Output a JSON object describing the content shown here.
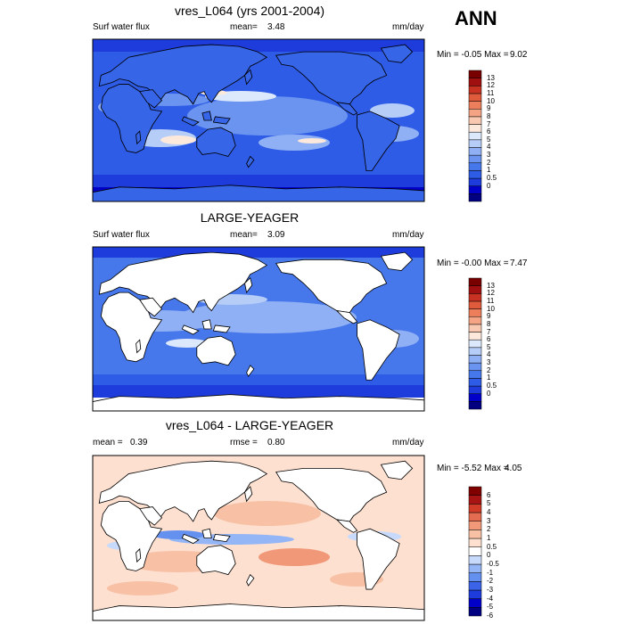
{
  "season": "ANN",
  "palette": {
    "abs": [
      "#000080",
      "#0000c8",
      "#1e3cdc",
      "#2e5ce6",
      "#4678ec",
      "#6a94f0",
      "#8fb0f4",
      "#b6cdf8",
      "#dce8fc",
      "#fde8dc",
      "#f8c8b0",
      "#f4a484",
      "#ec7e5c",
      "#e05a3c",
      "#c83222",
      "#a01010",
      "#780000"
    ],
    "diff": [
      "#000080",
      "#0000c8",
      "#1e3cdc",
      "#3c64e8",
      "#6490f0",
      "#94b6f6",
      "#c8dafc",
      "#ffffff",
      "#fde0d0",
      "#f8c0a4",
      "#f09878",
      "#e46c50",
      "#d03c28",
      "#a81414",
      "#800000"
    ],
    "land": "#ffffff",
    "coast": "#000000"
  },
  "panels": [
    {
      "title": "vres_L064 (yrs 2001-2004)",
      "left_label": "Surf water flux",
      "mean_label": "mean=",
      "mean_value": "3.48",
      "units": "mm/day",
      "min_max": "Min = -0.05 Max =",
      "max_value": "9.02",
      "colorbar_labels": [
        "13",
        "12",
        "11",
        "10",
        "9",
        "8",
        "7",
        "6",
        "5",
        "4",
        "3",
        "2",
        "1",
        "0.5",
        "0"
      ]
    },
    {
      "title": "LARGE-YEAGER",
      "left_label": "Surf water flux",
      "mean_label": "mean=",
      "mean_value": "3.09",
      "units": "mm/day",
      "min_max": "Min = -0.00 Max =",
      "max_value": "7.47",
      "colorbar_labels": [
        "13",
        "12",
        "11",
        "10",
        "9",
        "8",
        "7",
        "6",
        "5",
        "4",
        "3",
        "2",
        "1",
        "0.5",
        "0"
      ]
    },
    {
      "title": "vres_L064 - LARGE-YEAGER",
      "mean_label": "mean =",
      "mean_value": "0.39",
      "rmse_label": "rmse =",
      "rmse_value": "0.80",
      "units": "mm/day",
      "min_max": "Min = -5.52 Max =",
      "max_value": "4.05",
      "colorbar_labels": [
        "6",
        "5",
        "4",
        "3",
        "2",
        "1",
        "0.5",
        "0",
        "-0.5",
        "-1",
        "-2",
        "-3",
        "-4",
        "-5",
        "-6"
      ]
    }
  ]
}
